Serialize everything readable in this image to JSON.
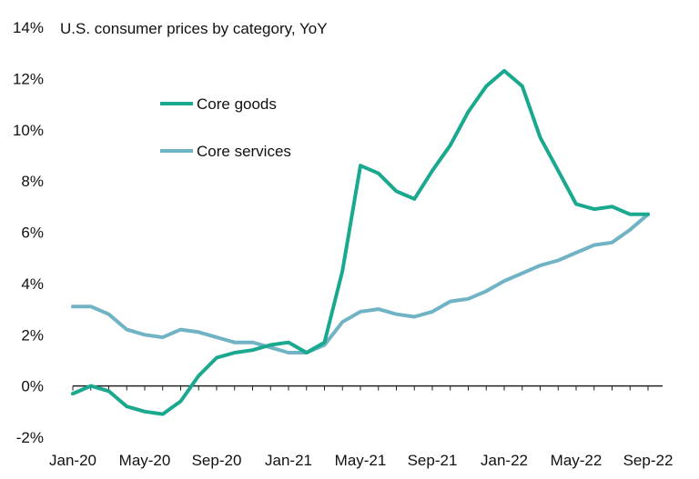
{
  "chart_data": {
    "type": "line",
    "title": "U.S. consumer prices by category, YoY",
    "xlabel": "",
    "ylabel": "",
    "ylim": [
      -2,
      14
    ],
    "yticks": [
      -2,
      0,
      2,
      4,
      6,
      8,
      10,
      12,
      14
    ],
    "ytick_labels": [
      "-2%",
      "0%",
      "2%",
      "4%",
      "6%",
      "8%",
      "10%",
      "12%",
      "14%"
    ],
    "x": [
      "Jan-20",
      "Feb-20",
      "Mar-20",
      "Apr-20",
      "May-20",
      "Jun-20",
      "Jul-20",
      "Aug-20",
      "Sep-20",
      "Oct-20",
      "Nov-20",
      "Dec-20",
      "Jan-21",
      "Feb-21",
      "Mar-21",
      "Apr-21",
      "May-21",
      "Jun-21",
      "Jul-21",
      "Aug-21",
      "Sep-21",
      "Oct-21",
      "Nov-21",
      "Dec-21",
      "Jan-22",
      "Feb-22",
      "Mar-22",
      "Apr-22",
      "May-22",
      "Jun-22",
      "Jul-22",
      "Aug-22",
      "Sep-22"
    ],
    "xtick_labels": [
      "Jan-20",
      "May-20",
      "Sep-20",
      "Jan-21",
      "May-21",
      "Sep-21",
      "Jan-22",
      "May-22",
      "Sep-22"
    ],
    "xtick_indices": [
      0,
      4,
      8,
      12,
      16,
      20,
      24,
      28,
      32
    ],
    "grid": false,
    "legend_position": "top-left",
    "series": [
      {
        "name": "Core goods",
        "color": "#1aa88e",
        "values": [
          -0.3,
          0.0,
          -0.2,
          -0.8,
          -1.0,
          -1.1,
          -0.6,
          0.4,
          1.1,
          1.3,
          1.4,
          1.6,
          1.7,
          1.3,
          1.7,
          4.5,
          8.6,
          8.3,
          7.6,
          7.3,
          8.4,
          9.4,
          10.7,
          11.7,
          12.3,
          11.7,
          9.7,
          8.4,
          7.1,
          6.9,
          7.0,
          6.7,
          6.7
        ]
      },
      {
        "name": "Core services",
        "color": "#6fb3c4",
        "values": [
          3.1,
          3.1,
          2.8,
          2.2,
          2.0,
          1.9,
          2.2,
          2.1,
          1.9,
          1.7,
          1.7,
          1.5,
          1.3,
          1.3,
          1.6,
          2.5,
          2.9,
          3.0,
          2.8,
          2.7,
          2.9,
          3.3,
          3.4,
          3.7,
          4.1,
          4.4,
          4.7,
          4.9,
          5.2,
          5.5,
          5.6,
          6.1,
          6.7
        ]
      }
    ]
  }
}
